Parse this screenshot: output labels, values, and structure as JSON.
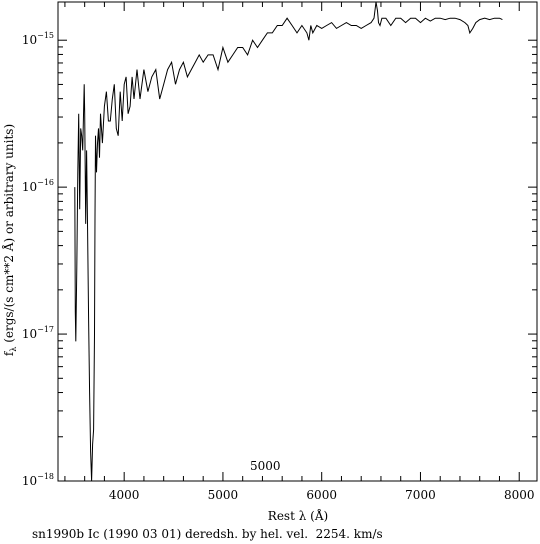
{
  "chart_data": {
    "type": "line",
    "caption": "sn1990b Ic (1990 03 01) deredsh. by hel. vel.  2254. km/s",
    "xlabel": "Rest λ (Å)",
    "ylabel": "f_λ (ergs/(s cm**2 Å) or arbitrary units)",
    "annotation": "5000",
    "xlim": [
      3330,
      8180
    ],
    "ylim_log10": [
      -18,
      -14.74
    ],
    "yscale": "log",
    "x_ticks": [
      4000,
      5000,
      6000,
      7000,
      8000
    ],
    "x_tick_labels": [
      "4000",
      "5000",
      "6000",
      "7000",
      "8000"
    ],
    "y_ticks_log10": [
      -18,
      -17,
      -16,
      -15
    ],
    "y_tick_labels": [
      {
        "base": "10",
        "exp": "−18"
      },
      {
        "base": "10",
        "exp": "−17"
      },
      {
        "base": "10",
        "exp": "−16"
      },
      {
        "base": "10",
        "exp": "−15"
      }
    ],
    "series": [
      {
        "x": [
          3500,
          3505,
          3510,
          3520,
          3530,
          3540,
          3550,
          3560,
          3570,
          3580,
          3590,
          3595,
          3600,
          3610,
          3620,
          3630,
          3640,
          3650,
          3660,
          3670,
          3680,
          3690,
          3700,
          3705,
          3710,
          3720,
          3730,
          3740,
          3750,
          3760,
          3780,
          3800,
          3820,
          3840,
          3860,
          3880,
          3900,
          3920,
          3940,
          3960,
          3980,
          4000,
          4020,
          4040,
          4060,
          4080,
          4100,
          4130,
          4160,
          4200,
          4240,
          4280,
          4320,
          4360,
          4400,
          4440,
          4480,
          4520,
          4560,
          4600,
          4640,
          4680,
          4720,
          4760,
          4800,
          4850,
          4900,
          4950,
          5000,
          5050,
          5100,
          5150,
          5200,
          5250,
          5300,
          5350,
          5400,
          5450,
          5500,
          5550,
          5600,
          5650,
          5700,
          5750,
          5800,
          5850,
          5870,
          5890,
          5910,
          5950,
          6000,
          6050,
          6100,
          6150,
          6200,
          6250,
          6300,
          6350,
          6400,
          6450,
          6500,
          6530,
          6550,
          6565,
          6575,
          6590,
          6610,
          6650,
          6700,
          6750,
          6800,
          6850,
          6900,
          6950,
          7000,
          7050,
          7100,
          7150,
          7200,
          7250,
          7300,
          7350,
          7400,
          7450,
          7480,
          7500,
          7530,
          7560,
          7600,
          7650,
          7700,
          7750,
          7800,
          7830
        ],
        "y_log10": [
          -16.0,
          -16.85,
          -17.05,
          -16.55,
          -15.9,
          -15.5,
          -16.15,
          -15.6,
          -15.65,
          -15.75,
          -15.45,
          -15.3,
          -15.5,
          -16.25,
          -15.75,
          -16.3,
          -16.9,
          -17.4,
          -17.8,
          -18.0,
          -17.75,
          -17.65,
          -17.0,
          -16.2,
          -15.65,
          -15.9,
          -15.7,
          -15.6,
          -15.8,
          -15.5,
          -15.7,
          -15.45,
          -15.35,
          -15.55,
          -15.55,
          -15.4,
          -15.3,
          -15.6,
          -15.65,
          -15.35,
          -15.55,
          -15.3,
          -15.25,
          -15.5,
          -15.45,
          -15.25,
          -15.4,
          -15.2,
          -15.4,
          -15.2,
          -15.35,
          -15.25,
          -15.2,
          -15.4,
          -15.3,
          -15.2,
          -15.15,
          -15.3,
          -15.2,
          -15.15,
          -15.25,
          -15.2,
          -15.15,
          -15.1,
          -15.15,
          -15.1,
          -15.1,
          -15.2,
          -15.05,
          -15.15,
          -15.1,
          -15.05,
          -15.05,
          -15.1,
          -15.0,
          -15.05,
          -15.0,
          -14.95,
          -14.95,
          -14.9,
          -14.9,
          -14.85,
          -14.9,
          -14.95,
          -14.9,
          -14.95,
          -15.0,
          -14.9,
          -14.95,
          -14.9,
          -14.92,
          -14.9,
          -14.88,
          -14.92,
          -14.9,
          -14.88,
          -14.9,
          -14.9,
          -14.92,
          -14.9,
          -14.88,
          -14.85,
          -14.74,
          -14.8,
          -14.88,
          -14.9,
          -14.85,
          -14.85,
          -14.9,
          -14.85,
          -14.85,
          -14.88,
          -14.85,
          -14.85,
          -14.88,
          -14.85,
          -14.87,
          -14.85,
          -14.85,
          -14.86,
          -14.85,
          -14.85,
          -14.86,
          -14.88,
          -14.9,
          -14.95,
          -14.92,
          -14.88,
          -14.86,
          -14.85,
          -14.86,
          -14.85,
          -14.85,
          -14.86
        ]
      }
    ]
  }
}
